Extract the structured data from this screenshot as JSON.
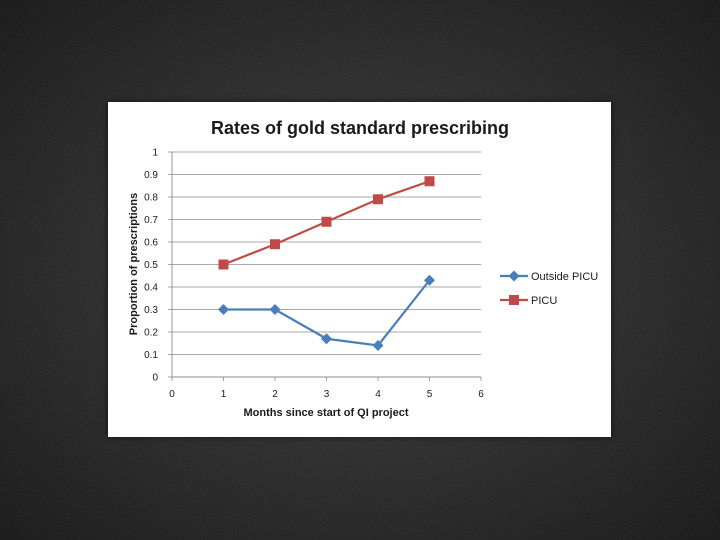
{
  "chart_data": {
    "type": "line",
    "title": "Rates of gold standard prescribing",
    "xlabel": "Months since start of QI project",
    "ylabel": "Proportion of prescriptions",
    "xlim": [
      0,
      6
    ],
    "ylim": [
      0,
      1
    ],
    "x_ticks": [
      "0",
      "1",
      "2",
      "3",
      "4",
      "5",
      "6"
    ],
    "y_ticks": [
      "0",
      "0.1",
      "0.2",
      "0.3",
      "0.4",
      "0.5",
      "0.6",
      "0.7",
      "0.8",
      "0.9",
      "1"
    ],
    "grid": true,
    "legend_position": "right",
    "series": [
      {
        "name": "Outside PICU",
        "color": "#4a7ebb",
        "marker": "diamond",
        "x": [
          1,
          2,
          3,
          4,
          5
        ],
        "values": [
          0.3,
          0.3,
          0.17,
          0.14,
          0.43
        ]
      },
      {
        "name": "PICU",
        "color": "#be4b48",
        "marker": "square",
        "x": [
          1,
          2,
          3,
          4,
          5
        ],
        "values": [
          0.5,
          0.59,
          0.69,
          0.79,
          0.87
        ]
      }
    ]
  }
}
